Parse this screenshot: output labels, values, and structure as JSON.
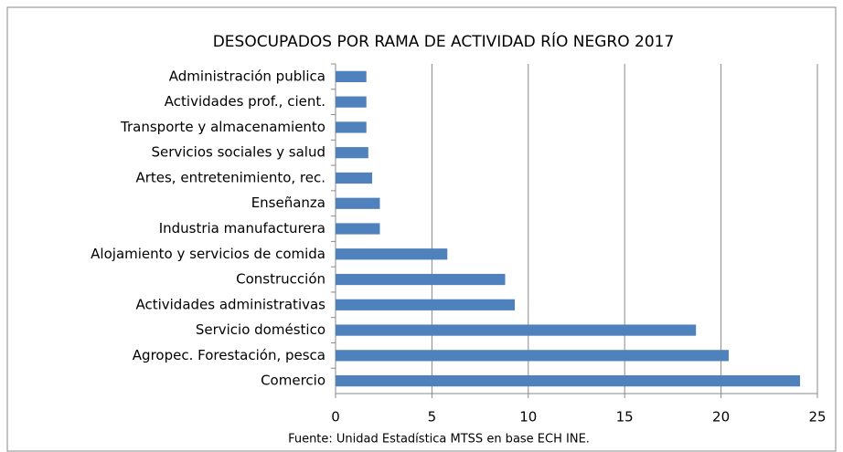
{
  "chart_data": {
    "type": "bar",
    "orientation": "horizontal",
    "title": "DESOCUPADOS POR RAMA DE ACTIVIDAD RÍO NEGRO 2017",
    "source": "Fuente: Unidad Estadística MTSS en base ECH INE.",
    "categories": [
      "Administración publica",
      "Actividades prof., cient.",
      "Transporte y almacenamiento",
      "Servicios sociales y salud",
      "Artes, entretenimiento, rec.",
      "Enseñanza",
      "Industria manufacturera",
      "Alojamiento y servicios de comida",
      "Construcción",
      "Actividades administrativas",
      "Servicio doméstico",
      "Agropec. Forestación, pesca",
      "Comercio"
    ],
    "values": [
      1.6,
      1.6,
      1.6,
      1.7,
      1.9,
      2.3,
      2.3,
      5.8,
      8.8,
      9.3,
      18.7,
      20.4,
      24.1
    ],
    "color": "#4f81bd",
    "xlim": [
      0,
      25
    ],
    "xticks": [
      0,
      5,
      10,
      15,
      20,
      25
    ],
    "grid": true
  }
}
